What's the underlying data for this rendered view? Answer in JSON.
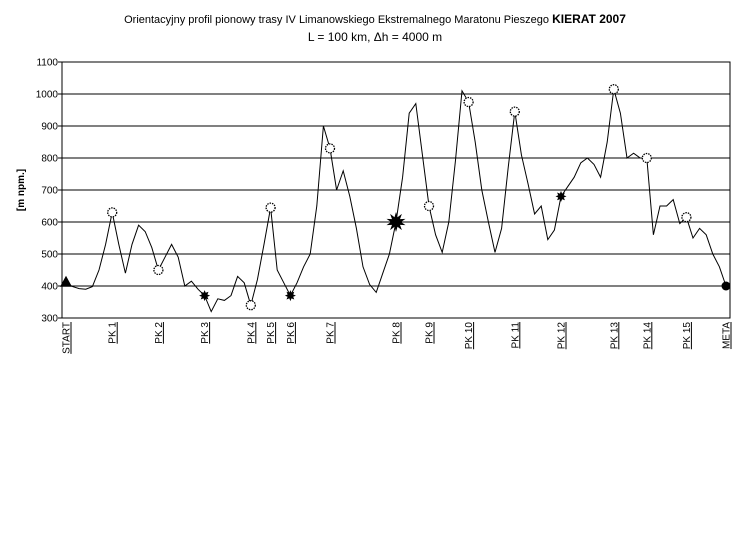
{
  "chart_data": {
    "type": "line",
    "title": "Orientacyjny profil pionowy trasy IV Limanowskiego Ekstremalnego Maratonu Pieszego ",
    "title_emphasis": "KIERAT 2007",
    "subtitle": "L = 100 km, Δh = 4000 m",
    "y_label": "[m npm.]",
    "ylim": [
      300,
      1100
    ],
    "yticks": [
      300,
      400,
      500,
      600,
      700,
      800,
      900,
      1000,
      1100
    ],
    "grid": true,
    "categories": [
      "START",
      null,
      null,
      null,
      null,
      null,
      null,
      "PK 1",
      null,
      null,
      null,
      null,
      null,
      null,
      "PK 2",
      null,
      null,
      null,
      null,
      null,
      null,
      "PK 3",
      null,
      null,
      null,
      null,
      null,
      null,
      "PK 4",
      null,
      null,
      "PK 5",
      null,
      null,
      "PK 6",
      null,
      null,
      null,
      null,
      null,
      "PK 7",
      null,
      null,
      null,
      null,
      null,
      null,
      null,
      null,
      null,
      "PK 8",
      null,
      null,
      null,
      null,
      "PK 9",
      null,
      null,
      null,
      null,
      null,
      "PK 10",
      null,
      null,
      null,
      null,
      null,
      null,
      "PK 11",
      null,
      null,
      null,
      null,
      null,
      null,
      "PK 12",
      null,
      null,
      null,
      null,
      null,
      null,
      null,
      "PK 13",
      null,
      null,
      null,
      null,
      "PK 14",
      null,
      null,
      null,
      null,
      null,
      "PK 15",
      null,
      null,
      null,
      null,
      null,
      "META"
    ],
    "series": [
      {
        "color": "#000000",
        "values": [
          410,
          398,
          392,
          390,
          398,
          450,
          530,
          630,
          530,
          440,
          530,
          590,
          570,
          520,
          450,
          490,
          530,
          490,
          400,
          415,
          390,
          370,
          320,
          360,
          355,
          370,
          430,
          410,
          340,
          420,
          530,
          645,
          450,
          410,
          370,
          410,
          460,
          500,
          650,
          900,
          830,
          700,
          760,
          680,
          580,
          460,
          405,
          380,
          440,
          500,
          600,
          740,
          940,
          970,
          810,
          650,
          560,
          505,
          600,
          790,
          1010,
          975,
          850,
          700,
          600,
          505,
          580,
          770,
          945,
          810,
          720,
          625,
          650,
          545,
          575,
          680,
          710,
          740,
          785,
          800,
          780,
          740,
          850,
          1015,
          940,
          800,
          815,
          800,
          800,
          560,
          650,
          650,
          670,
          595,
          615,
          550,
          580,
          560,
          500,
          460,
          400
        ]
      }
    ],
    "point_markers": [
      "triangle",
      null,
      null,
      null,
      null,
      null,
      null,
      "open-circle",
      null,
      null,
      null,
      null,
      null,
      null,
      "open-circle",
      null,
      null,
      null,
      null,
      null,
      null,
      "star",
      null,
      null,
      null,
      null,
      null,
      null,
      "open-circle",
      null,
      null,
      "open-circle",
      null,
      null,
      "star",
      null,
      null,
      null,
      null,
      null,
      "open-circle",
      null,
      null,
      null,
      null,
      null,
      null,
      null,
      null,
      null,
      "big-star",
      null,
      null,
      null,
      null,
      "open-circle",
      null,
      null,
      null,
      null,
      null,
      "open-circle",
      null,
      null,
      null,
      null,
      null,
      null,
      "open-circle",
      null,
      null,
      null,
      null,
      null,
      null,
      "star",
      null,
      null,
      null,
      null,
      null,
      null,
      null,
      "open-circle",
      null,
      null,
      null,
      null,
      "open-circle",
      null,
      null,
      null,
      null,
      null,
      "open-circle",
      null,
      null,
      null,
      null,
      null,
      "dot"
    ]
  }
}
